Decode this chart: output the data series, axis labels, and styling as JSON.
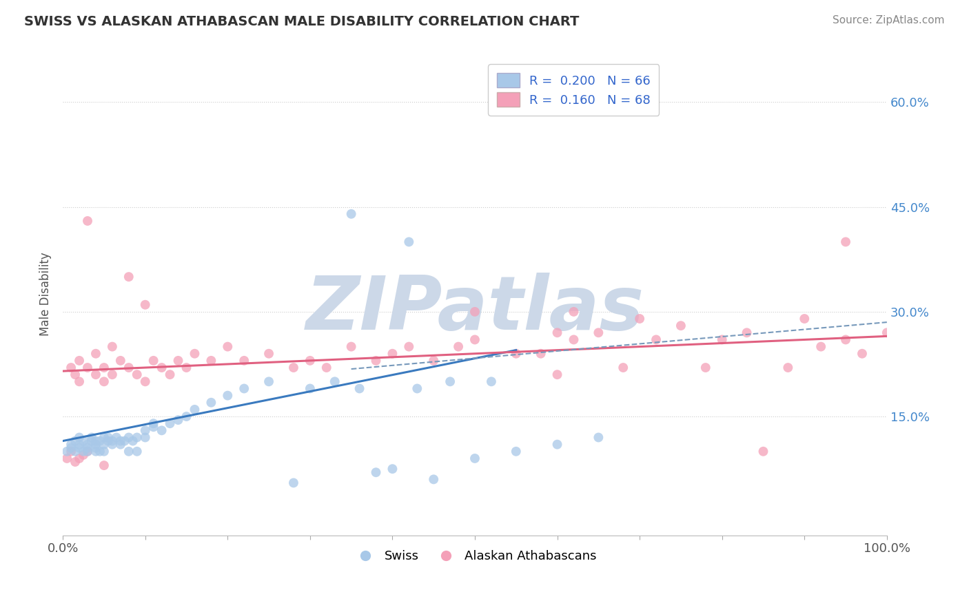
{
  "title": "SWISS VS ALASKAN ATHABASCAN MALE DISABILITY CORRELATION CHART",
  "source": "Source: ZipAtlas.com",
  "ylabel": "Male Disability",
  "xlim": [
    0.0,
    1.0
  ],
  "ylim": [
    -0.02,
    0.67
  ],
  "yticks": [
    0.15,
    0.3,
    0.45,
    0.6
  ],
  "ytick_labels": [
    "15.0%",
    "30.0%",
    "45.0%",
    "60.0%"
  ],
  "xticks": [
    0.0,
    0.1,
    0.2,
    0.3,
    0.4,
    0.5,
    0.6,
    0.7,
    0.8,
    0.9,
    1.0
  ],
  "xtick_labels": [
    "0.0%",
    "",
    "",
    "",
    "",
    "",
    "",
    "",
    "",
    "",
    "100.0%"
  ],
  "swiss_color": "#a8c8e8",
  "athabascan_color": "#f4a0b8",
  "swiss_line_color": "#3a7abf",
  "athabascan_line_color": "#e06080",
  "r_swiss": 0.2,
  "n_swiss": 66,
  "r_athabascan": 0.16,
  "n_athabascan": 68,
  "watermark": "ZIPatlas",
  "watermark_color": "#ccd8e8",
  "legend_label_swiss": "Swiss",
  "legend_label_athabascan": "Alaskan Athabascans",
  "swiss_x": [
    0.005,
    0.01,
    0.01,
    0.015,
    0.015,
    0.02,
    0.02,
    0.02,
    0.025,
    0.025,
    0.03,
    0.03,
    0.03,
    0.035,
    0.035,
    0.04,
    0.04,
    0.04,
    0.04,
    0.045,
    0.045,
    0.05,
    0.05,
    0.05,
    0.055,
    0.055,
    0.06,
    0.06,
    0.065,
    0.07,
    0.07,
    0.075,
    0.08,
    0.08,
    0.085,
    0.09,
    0.09,
    0.1,
    0.1,
    0.11,
    0.11,
    0.12,
    0.13,
    0.14,
    0.15,
    0.16,
    0.18,
    0.2,
    0.22,
    0.25,
    0.28,
    0.3,
    0.33,
    0.36,
    0.38,
    0.4,
    0.43,
    0.45,
    0.47,
    0.5,
    0.52,
    0.55,
    0.6,
    0.65,
    0.35,
    0.42
  ],
  "swiss_y": [
    0.1,
    0.105,
    0.11,
    0.1,
    0.115,
    0.105,
    0.11,
    0.12,
    0.1,
    0.115,
    0.1,
    0.11,
    0.105,
    0.115,
    0.12,
    0.1,
    0.11,
    0.105,
    0.115,
    0.1,
    0.115,
    0.1,
    0.11,
    0.12,
    0.115,
    0.12,
    0.11,
    0.115,
    0.12,
    0.11,
    0.115,
    0.115,
    0.1,
    0.12,
    0.115,
    0.1,
    0.12,
    0.13,
    0.12,
    0.14,
    0.135,
    0.13,
    0.14,
    0.145,
    0.15,
    0.16,
    0.17,
    0.18,
    0.19,
    0.2,
    0.055,
    0.19,
    0.2,
    0.19,
    0.07,
    0.075,
    0.19,
    0.06,
    0.2,
    0.09,
    0.2,
    0.1,
    0.11,
    0.12,
    0.44,
    0.4
  ],
  "athabascan_x": [
    0.005,
    0.01,
    0.01,
    0.015,
    0.015,
    0.02,
    0.02,
    0.02,
    0.025,
    0.03,
    0.03,
    0.04,
    0.04,
    0.05,
    0.05,
    0.06,
    0.06,
    0.07,
    0.08,
    0.09,
    0.1,
    0.11,
    0.12,
    0.13,
    0.14,
    0.15,
    0.16,
    0.18,
    0.2,
    0.22,
    0.25,
    0.28,
    0.3,
    0.32,
    0.35,
    0.38,
    0.4,
    0.42,
    0.45,
    0.48,
    0.5,
    0.55,
    0.58,
    0.6,
    0.62,
    0.65,
    0.68,
    0.7,
    0.72,
    0.75,
    0.78,
    0.8,
    0.83,
    0.85,
    0.88,
    0.9,
    0.92,
    0.95,
    0.97,
    1.0,
    0.03,
    0.05,
    0.08,
    0.1,
    0.5,
    0.6,
    0.62,
    0.95
  ],
  "athabascan_y": [
    0.09,
    0.1,
    0.22,
    0.085,
    0.21,
    0.09,
    0.2,
    0.23,
    0.095,
    0.22,
    0.1,
    0.21,
    0.24,
    0.2,
    0.22,
    0.21,
    0.25,
    0.23,
    0.22,
    0.21,
    0.2,
    0.23,
    0.22,
    0.21,
    0.23,
    0.22,
    0.24,
    0.23,
    0.25,
    0.23,
    0.24,
    0.22,
    0.23,
    0.22,
    0.25,
    0.23,
    0.24,
    0.25,
    0.23,
    0.25,
    0.26,
    0.24,
    0.24,
    0.21,
    0.26,
    0.27,
    0.22,
    0.29,
    0.26,
    0.28,
    0.22,
    0.26,
    0.27,
    0.1,
    0.22,
    0.29,
    0.25,
    0.26,
    0.24,
    0.27,
    0.43,
    0.08,
    0.35,
    0.31,
    0.3,
    0.27,
    0.3,
    0.4
  ],
  "swiss_line_x": [
    0.0,
    0.55
  ],
  "swiss_line_y_start": 0.115,
  "swiss_line_y_end": 0.245,
  "ath_line_x": [
    0.0,
    1.0
  ],
  "ath_line_y_start": 0.215,
  "ath_line_y_end": 0.265,
  "dash_line_x": [
    0.35,
    1.0
  ],
  "dash_line_y_start": 0.218,
  "dash_line_y_end": 0.285
}
